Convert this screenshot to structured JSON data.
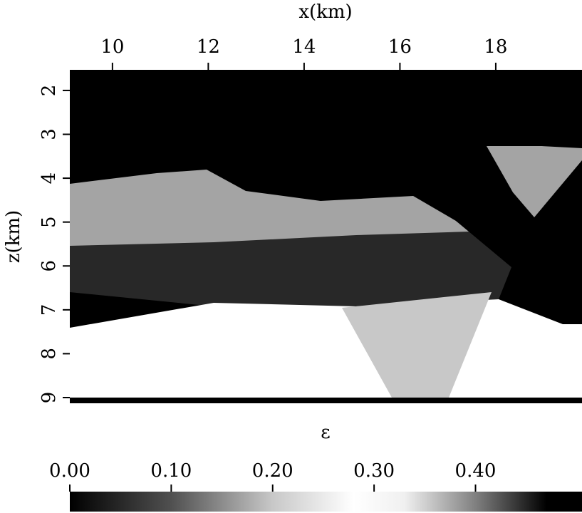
{
  "chart_data": {
    "type": "image",
    "xlabel": "x(km)",
    "ylabel": "z(km)",
    "xlim": [
      9.11,
      19.8
    ],
    "xticks": [
      10,
      12,
      14,
      16,
      18
    ],
    "ylim": [
      9.13,
      1.53
    ],
    "yticks": [
      2,
      3,
      4,
      5,
      6,
      7,
      8,
      9
    ],
    "colorbar_label": "ε",
    "clim": [
      0,
      0.505
    ],
    "cticks": [
      {
        "value": 0,
        "label": "0.00"
      },
      {
        "value": 0.1,
        "label": "0.10"
      },
      {
        "value": 0.2,
        "label": "0.20"
      },
      {
        "value": 0.3,
        "label": "0.30"
      },
      {
        "value": 0.4,
        "label": "0.40"
      }
    ],
    "colormap": [
      {
        "value": 0,
        "color": "#000000"
      },
      {
        "value": 0.1,
        "color": "#505050"
      },
      {
        "value": 0.2,
        "color": "#c8c8c8"
      },
      {
        "value": 0.28,
        "color": "#ffffff"
      },
      {
        "value": 0.33,
        "color": "#f0f0f0"
      },
      {
        "value": 0.4,
        "color": "#808080"
      },
      {
        "value": 0.47,
        "color": "#000000"
      }
    ],
    "image_values": [
      0,
      0.17,
      0.05,
      0.28,
      0.2,
      0,
      0.17
    ]
  }
}
